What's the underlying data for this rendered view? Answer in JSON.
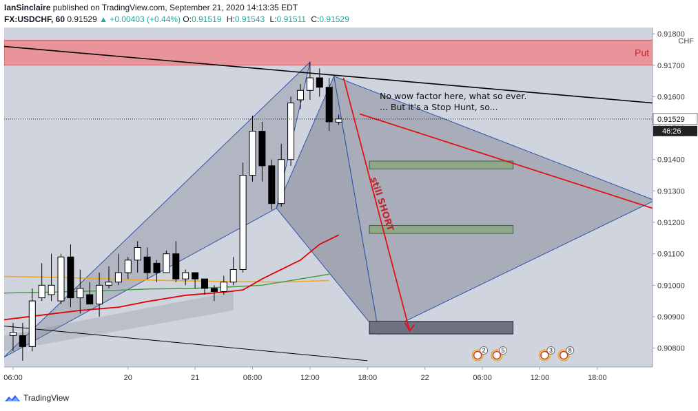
{
  "header": {
    "author": "IanSinclaire",
    "published": "published on TradingView.com, September 21, 2020 14:13:35 EDT",
    "symbol": "FX:USDCHF, 60",
    "last": "0.91529",
    "change": "▲ +0.00403 (+0.44%)",
    "o_label": "O:",
    "o_value": "0.91519",
    "h_label": "H:",
    "h_value": "0.91543",
    "l_label": "L:",
    "l_value": "0.91511",
    "c_label": "C:",
    "c_value": "0.91529"
  },
  "footer": {
    "brand": "TradingView"
  },
  "colors": {
    "plot_bg": "#cfd4df",
    "put_zone": "#e8949a",
    "pattern_fill": "#7b7f8c",
    "red_line": "#e21212",
    "trend_line": "#000000",
    "ma_orange": "#f5a623",
    "ma_green": "#3c9a3c",
    "ma_red": "#e00000",
    "bull": "#ffffff",
    "bear": "#000000",
    "green_box": "#8fa88a",
    "pattern_edge": "#2f54a8"
  },
  "chart_data": {
    "type": "candlestick",
    "currency": "CHF",
    "ylim": [
      0.9074,
      0.9182
    ],
    "price_ticks": [
      "0.91800",
      "0.91700",
      "0.91600",
      "0.91500",
      "0.91400",
      "0.91300",
      "0.91200",
      "0.91100",
      "0.91000",
      "0.90900",
      "0.90800"
    ],
    "price_tick_values": [
      0.918,
      0.917,
      0.916,
      0.915,
      0.914,
      0.913,
      0.912,
      0.911,
      0.91,
      0.909,
      0.908
    ],
    "current_price_label": "0.91529",
    "current_price": 0.91529,
    "countdown_label": "46:26",
    "time_ticks": [
      {
        "label": "06:00",
        "bar": 0
      },
      {
        "label": "20",
        "bar": 12
      },
      {
        "label": "21",
        "bar": 19
      },
      {
        "label": "06:00",
        "bar": 25
      },
      {
        "label": "12:00",
        "bar": 31
      },
      {
        "label": "18:00",
        "bar": 37
      },
      {
        "label": "22",
        "bar": 43
      },
      {
        "label": "06:00",
        "bar": 49
      },
      {
        "label": "12:00",
        "bar": 55
      },
      {
        "label": "18:00",
        "bar": 61
      }
    ],
    "candles": [
      {
        "o": 0.9084,
        "h": 0.9088,
        "l": 0.9079,
        "c": 0.9085
      },
      {
        "o": 0.9084,
        "h": 0.9088,
        "l": 0.9076,
        "c": 0.90805
      },
      {
        "o": 0.90805,
        "h": 0.9099,
        "l": 0.9079,
        "c": 0.9095
      },
      {
        "o": 0.9096,
        "h": 0.9107,
        "l": 0.9095,
        "c": 0.91
      },
      {
        "o": 0.9097,
        "h": 0.911,
        "l": 0.9095,
        "c": 0.91
      },
      {
        "o": 0.9095,
        "h": 0.911,
        "l": 0.9094,
        "c": 0.9109
      },
      {
        "o": 0.9109,
        "h": 0.9113,
        "l": 0.9093,
        "c": 0.9096
      },
      {
        "o": 0.9096,
        "h": 0.9105,
        "l": 0.9091,
        "c": 0.9099
      },
      {
        "o": 0.9097,
        "h": 0.9101,
        "l": 0.9094,
        "c": 0.9094
      },
      {
        "o": 0.9094,
        "h": 0.9104,
        "l": 0.909,
        "c": 0.91
      },
      {
        "o": 0.91,
        "h": 0.9106,
        "l": 0.9099,
        "c": 0.9101
      },
      {
        "o": 0.9101,
        "h": 0.911,
        "l": 0.91,
        "c": 0.9104
      },
      {
        "o": 0.9104,
        "h": 0.9109,
        "l": 0.9102,
        "c": 0.9108
      },
      {
        "o": 0.9108,
        "h": 0.9114,
        "l": 0.9104,
        "c": 0.9112
      },
      {
        "o": 0.9109,
        "h": 0.9112,
        "l": 0.9102,
        "c": 0.9104
      },
      {
        "o": 0.9107,
        "h": 0.9108,
        "l": 0.9101,
        "c": 0.9104
      },
      {
        "o": 0.9104,
        "h": 0.9111,
        "l": 0.9104,
        "c": 0.911
      },
      {
        "o": 0.911,
        "h": 0.9114,
        "l": 0.9101,
        "c": 0.9102
      },
      {
        "o": 0.9102,
        "h": 0.9105,
        "l": 0.91,
        "c": 0.9104
      },
      {
        "o": 0.9104,
        "h": 0.9104,
        "l": 0.9099,
        "c": 0.9102
      },
      {
        "o": 0.9102,
        "h": 0.9102,
        "l": 0.9097,
        "c": 0.9099
      },
      {
        "o": 0.9099,
        "h": 0.91,
        "l": 0.9095,
        "c": 0.9098
      },
      {
        "o": 0.9098,
        "h": 0.9103,
        "l": 0.9097,
        "c": 0.9101
      },
      {
        "o": 0.9101,
        "h": 0.9109,
        "l": 0.91,
        "c": 0.9105
      },
      {
        "o": 0.9105,
        "h": 0.9139,
        "l": 0.9104,
        "c": 0.9135
      },
      {
        "o": 0.9135,
        "h": 0.9154,
        "l": 0.9133,
        "c": 0.9149
      },
      {
        "o": 0.9149,
        "h": 0.9152,
        "l": 0.9133,
        "c": 0.9138
      },
      {
        "o": 0.9138,
        "h": 0.914,
        "l": 0.9124,
        "c": 0.9126
      },
      {
        "o": 0.9126,
        "h": 0.9145,
        "l": 0.9125,
        "c": 0.914
      },
      {
        "o": 0.914,
        "h": 0.916,
        "l": 0.9138,
        "c": 0.9158
      },
      {
        "o": 0.9159,
        "h": 0.9164,
        "l": 0.9156,
        "c": 0.9162
      },
      {
        "o": 0.9162,
        "h": 0.9171,
        "l": 0.9159,
        "c": 0.9166
      },
      {
        "o": 0.9166,
        "h": 0.9169,
        "l": 0.916,
        "c": 0.9163
      },
      {
        "o": 0.9163,
        "h": 0.9166,
        "l": 0.9149,
        "c": 0.9152
      },
      {
        "o": 0.91519,
        "h": 0.91543,
        "l": 0.91511,
        "c": 0.91529
      }
    ],
    "put_zone": {
      "label": "Put",
      "from": 0.917,
      "to": 0.9178
    },
    "annotations": [
      {
        "text": "No wow factor here, what so ever."
      },
      {
        "text": "... But it's a Stop Hunt, so..."
      },
      {
        "text": "still SHORT"
      }
    ],
    "events": [
      {
        "label": "2",
        "bar": 48.5
      },
      {
        "label": "5",
        "bar": 50.5
      },
      {
        "label": "3",
        "bar": 55.5
      },
      {
        "label": "8",
        "bar": 57.5
      }
    ]
  }
}
